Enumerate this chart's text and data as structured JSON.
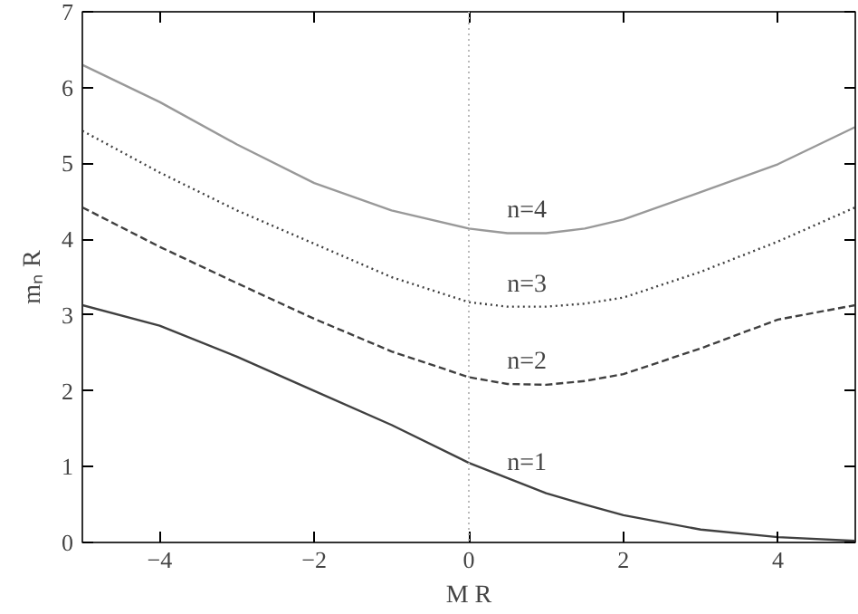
{
  "chart_data": {
    "type": "line",
    "xlabel": "M R",
    "ylabel": "mₙ R",
    "x": [
      -5,
      -4,
      -3,
      -2,
      -1,
      0,
      0.5,
      1,
      1.5,
      2,
      3,
      4,
      5
    ],
    "series": [
      {
        "name": "n=1",
        "color": "#404040",
        "line_style": "solid",
        "values": [
          3.13,
          2.86,
          2.45,
          2.0,
          1.55,
          1.05,
          0.85,
          0.65,
          0.5,
          0.36,
          0.17,
          0.07,
          0.02
        ]
      },
      {
        "name": "n=2",
        "color": "#404040",
        "line_style": "dashed",
        "values": [
          4.42,
          3.9,
          3.42,
          2.95,
          2.52,
          2.18,
          2.09,
          2.08,
          2.13,
          2.22,
          2.56,
          2.94,
          3.13
        ]
      },
      {
        "name": "n=3",
        "color": "#404040",
        "line_style": "dotted",
        "values": [
          5.43,
          4.88,
          4.38,
          3.94,
          3.5,
          3.17,
          3.11,
          3.11,
          3.15,
          3.23,
          3.57,
          3.97,
          4.42
        ]
      },
      {
        "name": "n=4",
        "color": "#999999",
        "line_style": "solid",
        "values": [
          6.3,
          5.81,
          5.25,
          4.74,
          4.38,
          4.14,
          4.08,
          4.08,
          4.14,
          4.26,
          4.62,
          4.99,
          5.48
        ]
      }
    ],
    "ref_lines": [
      {
        "axis": "x",
        "value": 0,
        "color": "#bbbbbb",
        "line_style": "dotted"
      }
    ],
    "xlim": [
      -5,
      5
    ],
    "ylim": [
      0,
      7
    ],
    "xticks": [
      -4,
      -2,
      0,
      2,
      4
    ],
    "yticks": [
      0,
      1,
      2,
      3,
      4,
      5,
      6,
      7
    ],
    "grid": false,
    "legend": false,
    "marker": "none"
  }
}
